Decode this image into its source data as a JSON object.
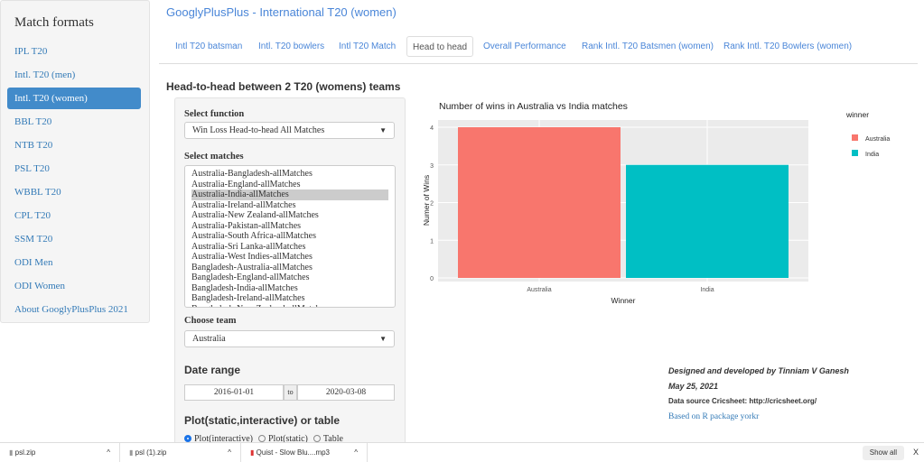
{
  "sidebar": {
    "title": "Match formats",
    "items": [
      "IPL T20",
      "Intl. T20 (men)",
      "Intl. T20 (women)",
      "BBL T20",
      "NTB T20",
      "PSL T20",
      "WBBL T20",
      "CPL T20",
      "SSM T20",
      "ODI Men",
      "ODI Women",
      "About GooglyPlusPlus 2021"
    ],
    "active": 2
  },
  "header": {
    "title": "GooglyPlusPlus - International T20 (women)"
  },
  "tabs": [
    "Intl T20 batsman",
    "Intl. T20 bowlers",
    "Intl T20 Match",
    "Head to head",
    "Overall Performance",
    "Rank Intl. T20 Batsmen (women)",
    "Rank Intl. T20 Bowlers (women)"
  ],
  "main": {
    "heading": "Head-to-head between 2 T20 (womens) teams",
    "select_function_label": "Select function",
    "select_function_value": "Win Loss Head-to-head All Matches",
    "select_matches_label": "Select matches",
    "matches": [
      "Australia-Bangladesh-allMatches",
      "Australia-England-allMatches",
      "Australia-India-allMatches",
      "Australia-Ireland-allMatches",
      "Australia-New Zealand-allMatches",
      "Australia-Pakistan-allMatches",
      "Australia-South Africa-allMatches",
      "Australia-Sri Lanka-allMatches",
      "Australia-West Indies-allMatches",
      "Bangladesh-Australia-allMatches",
      "Bangladesh-England-allMatches",
      "Bangladesh-India-allMatches",
      "Bangladesh-Ireland-allMatches",
      "Bangladesh-New Zealand-allMatches"
    ],
    "selected_match": "Australia-India-allMatches",
    "choose_team_label": "Choose team",
    "choose_team_value": "Australia",
    "date_range_label": "Date range",
    "date_from": "2016-01-01",
    "date_sep": "to",
    "date_to": "2020-03-08",
    "output_label": "Plot(static,interactive) or table",
    "output_options": [
      "Plot(interactive)",
      "Plot(static)",
      "Table"
    ],
    "output_selected": 0
  },
  "credits": {
    "line1": "Designed and developed by Tinniam V Ganesh",
    "line2": "May 25, 2021",
    "line3": "Data source Cricsheet: http://cricsheet.org/",
    "link": "Based on R package yorkr"
  },
  "downloads": {
    "items": [
      "psl.zip",
      "psl (1).zip",
      "Quist - Slow Blu....mp3"
    ],
    "show_all": "Show all",
    "close": "X"
  },
  "chart_data": {
    "type": "bar",
    "title": "Number of wins in Australia  vs  India  matches",
    "categories": [
      "Australia",
      "India"
    ],
    "values": [
      4,
      3
    ],
    "colors": [
      "#F8766D",
      "#00BFC4"
    ],
    "xlabel": "Winner",
    "ylabel": "Numer of Wins",
    "ylim": [
      0,
      4
    ],
    "yticks": [
      0,
      1,
      2,
      3,
      4
    ],
    "legend_title": "winner",
    "legend": [
      "Australia",
      "India"
    ],
    "legend_position": "right",
    "grid": true
  }
}
